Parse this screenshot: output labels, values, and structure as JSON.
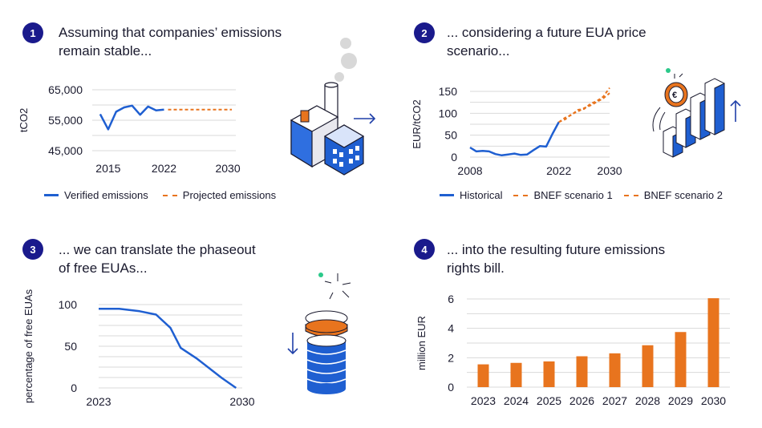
{
  "colors": {
    "blue": "#1f5fd1",
    "orange": "#e8741e",
    "navy": "#1a1a8c",
    "grid": "#d9d9d9"
  },
  "panels": [
    {
      "number": "1",
      "heading_line1": "Assuming that companies’ emissions",
      "heading_line2": "remain stable..."
    },
    {
      "number": "2",
      "heading_line1": "... considering a future EUA price",
      "heading_line2": "scenario..."
    },
    {
      "number": "3",
      "heading_line1": "... we can translate the phaseout",
      "heading_line2": "of free EUAs..."
    },
    {
      "number": "4",
      "heading_line1": "... into the resulting future emissions",
      "heading_line2": "rights bill."
    }
  ],
  "legend1": {
    "verified": "Verified emissions",
    "projected": "Projected emissions"
  },
  "legend2": {
    "historical": "Historical",
    "bnef1": "BNEF scenario 1",
    "bnef2": "BNEF scenario 2"
  },
  "icons": [
    "factory-icon",
    "euro-coin-growth-icon",
    "coin-stack-icon"
  ],
  "chart_data": [
    {
      "type": "line",
      "ylabel": "tCO2",
      "xlim": [
        2013,
        2031
      ],
      "ylim": [
        45000,
        65000
      ],
      "yticks": [
        "45,000",
        "55,000",
        "65,000"
      ],
      "ytick_values": [
        45000,
        55000,
        65000
      ],
      "xticks": [
        "2015",
        "2022",
        "2030"
      ],
      "xtick_values": [
        2015,
        2022,
        2030
      ],
      "series": [
        {
          "name": "Verified emissions",
          "style": "solid",
          "color": "#1f5fd1",
          "x": [
            2014,
            2015,
            2016,
            2017,
            2018,
            2019,
            2020,
            2021,
            2022
          ],
          "y": [
            57000,
            52000,
            57800,
            59200,
            59800,
            56800,
            59500,
            58200,
            58500
          ]
        },
        {
          "name": "Projected emissions",
          "style": "dashed",
          "color": "#e8741e",
          "x": [
            2022.5,
            2030.5
          ],
          "y": [
            58500,
            58500
          ]
        }
      ]
    },
    {
      "type": "line",
      "ylabel": "EUR/tCO2",
      "xlim": [
        2008,
        2030
      ],
      "ylim": [
        0,
        150
      ],
      "yticks": [
        "0",
        "50",
        "100",
        "150"
      ],
      "ytick_values": [
        0,
        50,
        100,
        150
      ],
      "xticks": [
        "2008",
        "2022",
        "2030"
      ],
      "xtick_values": [
        2008,
        2022,
        2030
      ],
      "series": [
        {
          "name": "Historical",
          "style": "solid",
          "color": "#1f5fd1",
          "x": [
            2008,
            2009,
            2010,
            2011,
            2012,
            2013,
            2014,
            2015,
            2016,
            2017,
            2018,
            2019,
            2020,
            2021,
            2022
          ],
          "y": [
            22,
            13,
            14,
            13,
            7,
            4,
            6,
            8,
            5,
            6,
            16,
            25,
            24,
            53,
            80
          ]
        },
        {
          "name": "BNEF scenario 1",
          "style": "dashed",
          "color": "#e8741e",
          "x": [
            2022,
            2023,
            2024,
            2025,
            2026,
            2027,
            2028,
            2029,
            2030
          ],
          "y": [
            80,
            86,
            98,
            104,
            112,
            118,
            126,
            134,
            146
          ]
        },
        {
          "name": "BNEF scenario 2",
          "style": "dashed",
          "color": "#e8741e",
          "x": [
            2022,
            2023,
            2024,
            2025,
            2026,
            2027,
            2028,
            2029,
            2030
          ],
          "y": [
            80,
            90,
            96,
            108,
            110,
            122,
            128,
            138,
            158
          ]
        }
      ]
    },
    {
      "type": "line",
      "ylabel": "percentage of free EUAs",
      "xlim": [
        2023,
        2030
      ],
      "ylim": [
        0,
        100
      ],
      "yticks": [
        "0",
        "50",
        "100"
      ],
      "ytick_values": [
        0,
        50,
        100
      ],
      "xticks": [
        "2023",
        "2030"
      ],
      "xtick_values": [
        2023,
        2030
      ],
      "series": [
        {
          "name": "",
          "style": "solid",
          "color": "#1f5fd1",
          "x": [
            2023,
            2024,
            2025,
            2025.8,
            2026.5,
            2027,
            2027.8,
            2029,
            2029.7
          ],
          "y": [
            95,
            95,
            92,
            88,
            72,
            48,
            35,
            12,
            0
          ]
        }
      ]
    },
    {
      "type": "bar",
      "ylabel": "million EUR",
      "ylim": [
        0,
        6
      ],
      "yticks": [
        "0",
        "2",
        "4",
        "6"
      ],
      "ytick_values": [
        0,
        2,
        4,
        6
      ],
      "categories": [
        "2023",
        "2024",
        "2025",
        "2026",
        "2027",
        "2028",
        "2029",
        "2030"
      ],
      "values": [
        1.55,
        1.65,
        1.75,
        2.1,
        2.3,
        2.85,
        3.75,
        6.05
      ],
      "color": "#e8741e"
    }
  ]
}
